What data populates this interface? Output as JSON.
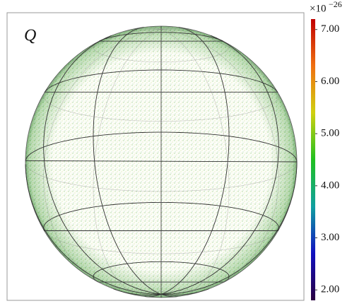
{
  "chart_data": {
    "type": "sphere",
    "label": "Q",
    "colorbar_multiplier": "×10",
    "colorbar_exponent": "−26",
    "clim": [
      1.8,
      7.2
    ],
    "cticks": [
      {
        "value": 2,
        "label": "2.00"
      },
      {
        "value": 3,
        "label": "3.00"
      },
      {
        "value": 4,
        "label": "4.00"
      },
      {
        "value": 5,
        "label": "5.00"
      },
      {
        "value": 6,
        "label": "6.00"
      },
      {
        "value": 7,
        "label": "7.00"
      }
    ],
    "colormap": [
      "#2a0040",
      "#1010c0",
      "#10a0a0",
      "#20c020",
      "#d0d010",
      "#f07010",
      "#c00000"
    ]
  }
}
